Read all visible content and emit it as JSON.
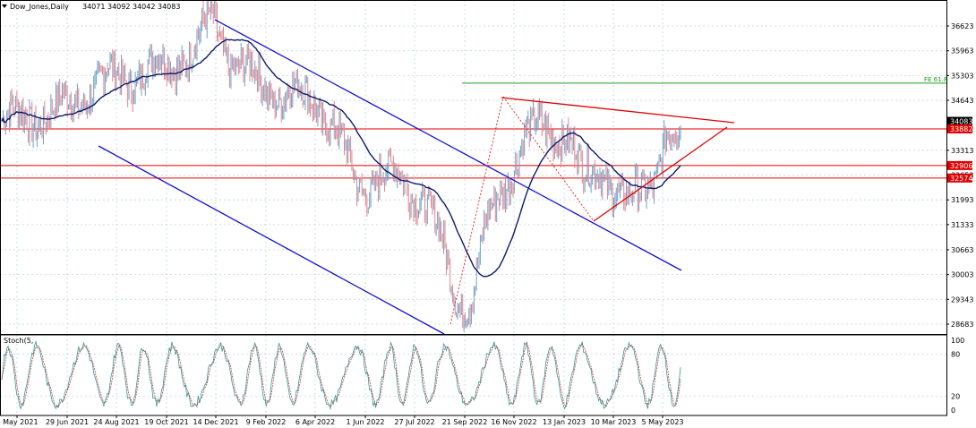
{
  "window": {
    "title": "Dow_Jones,Daily",
    "ohlc": "34071 34092 34042 34083",
    "menu_icon": "triangle-down-icon"
  },
  "chart_data": {
    "type": "candlestick",
    "symbol": "Dow_Jones",
    "timeframe": "Daily",
    "y_axis_labels": [
      "36623",
      "35963",
      "35303",
      "34643",
      "33882",
      "33313",
      "32653",
      "31993",
      "31333",
      "30663",
      "30003",
      "29343",
      "28683"
    ],
    "ylim": [
      28400,
      37200
    ],
    "x_axis_labels": [
      "4 May 2021",
      "29 Jun 2021",
      "24 Aug 2021",
      "19 Oct 2021",
      "14 Dec 2021",
      "9 Feb 2022",
      "6 Apr 2022",
      "1 Jun 2022",
      "27 Jul 2022",
      "21 Sep 2022",
      "16 Nov 2022",
      "13 Jan 2023",
      "10 Mar 2023",
      "5 May 2023"
    ],
    "price_tags": [
      {
        "label": "34083",
        "color": "#000000"
      },
      {
        "label": "33882",
        "color": "#e00000"
      },
      {
        "label": "32906",
        "color": "#e00000"
      },
      {
        "label": "32574",
        "color": "#e00000"
      }
    ],
    "horizontal_levels": [
      {
        "value": 33882,
        "color": "#e00000"
      },
      {
        "value": 32906,
        "color": "#e00000"
      },
      {
        "value": 32574,
        "color": "#e00000"
      },
      {
        "value": 35100,
        "color": "#19a019",
        "label": "FE 61.8"
      }
    ],
    "price_path": [
      {
        "date": "4 May 2021",
        "value": 34100
      },
      {
        "date": "29 Jun 2021",
        "value": 34300
      },
      {
        "date": "24 Aug 2021",
        "value": 35200
      },
      {
        "date": "19 Oct 2021",
        "value": 35500
      },
      {
        "date": "14 Dec 2021",
        "value": 36200
      },
      {
        "date": "9 Feb 2022",
        "value": 35000
      },
      {
        "date": "6 Apr 2022",
        "value": 34600
      },
      {
        "date": "1 Jun 2022",
        "value": 32900
      },
      {
        "date": "27 Jul 2022",
        "value": 32200
      },
      {
        "date": "21 Sep 2022",
        "value": 30200
      },
      {
        "date": "16 Nov 2022",
        "value": 33700
      },
      {
        "date": "13 Jan 2023",
        "value": 33900
      },
      {
        "date": "10 Mar 2023",
        "value": 31800
      },
      {
        "date": "5 May 2023",
        "value": 33600
      }
    ],
    "up_color": "#6fa0c8",
    "down_color": "#e8838a",
    "moving_average_color": "#0d1a6e",
    "channel_color": "#1010d8",
    "triangle_color": "#e00000",
    "grid": true,
    "indicator": {
      "label": "Stoch(5,",
      "y_axis_labels": [
        "100",
        "80",
        "20",
        "0"
      ],
      "ylim": [
        0,
        100
      ],
      "levels": [
        80,
        20
      ],
      "main_color": "#2f9a9a",
      "signal_color": "#c84040"
    }
  }
}
